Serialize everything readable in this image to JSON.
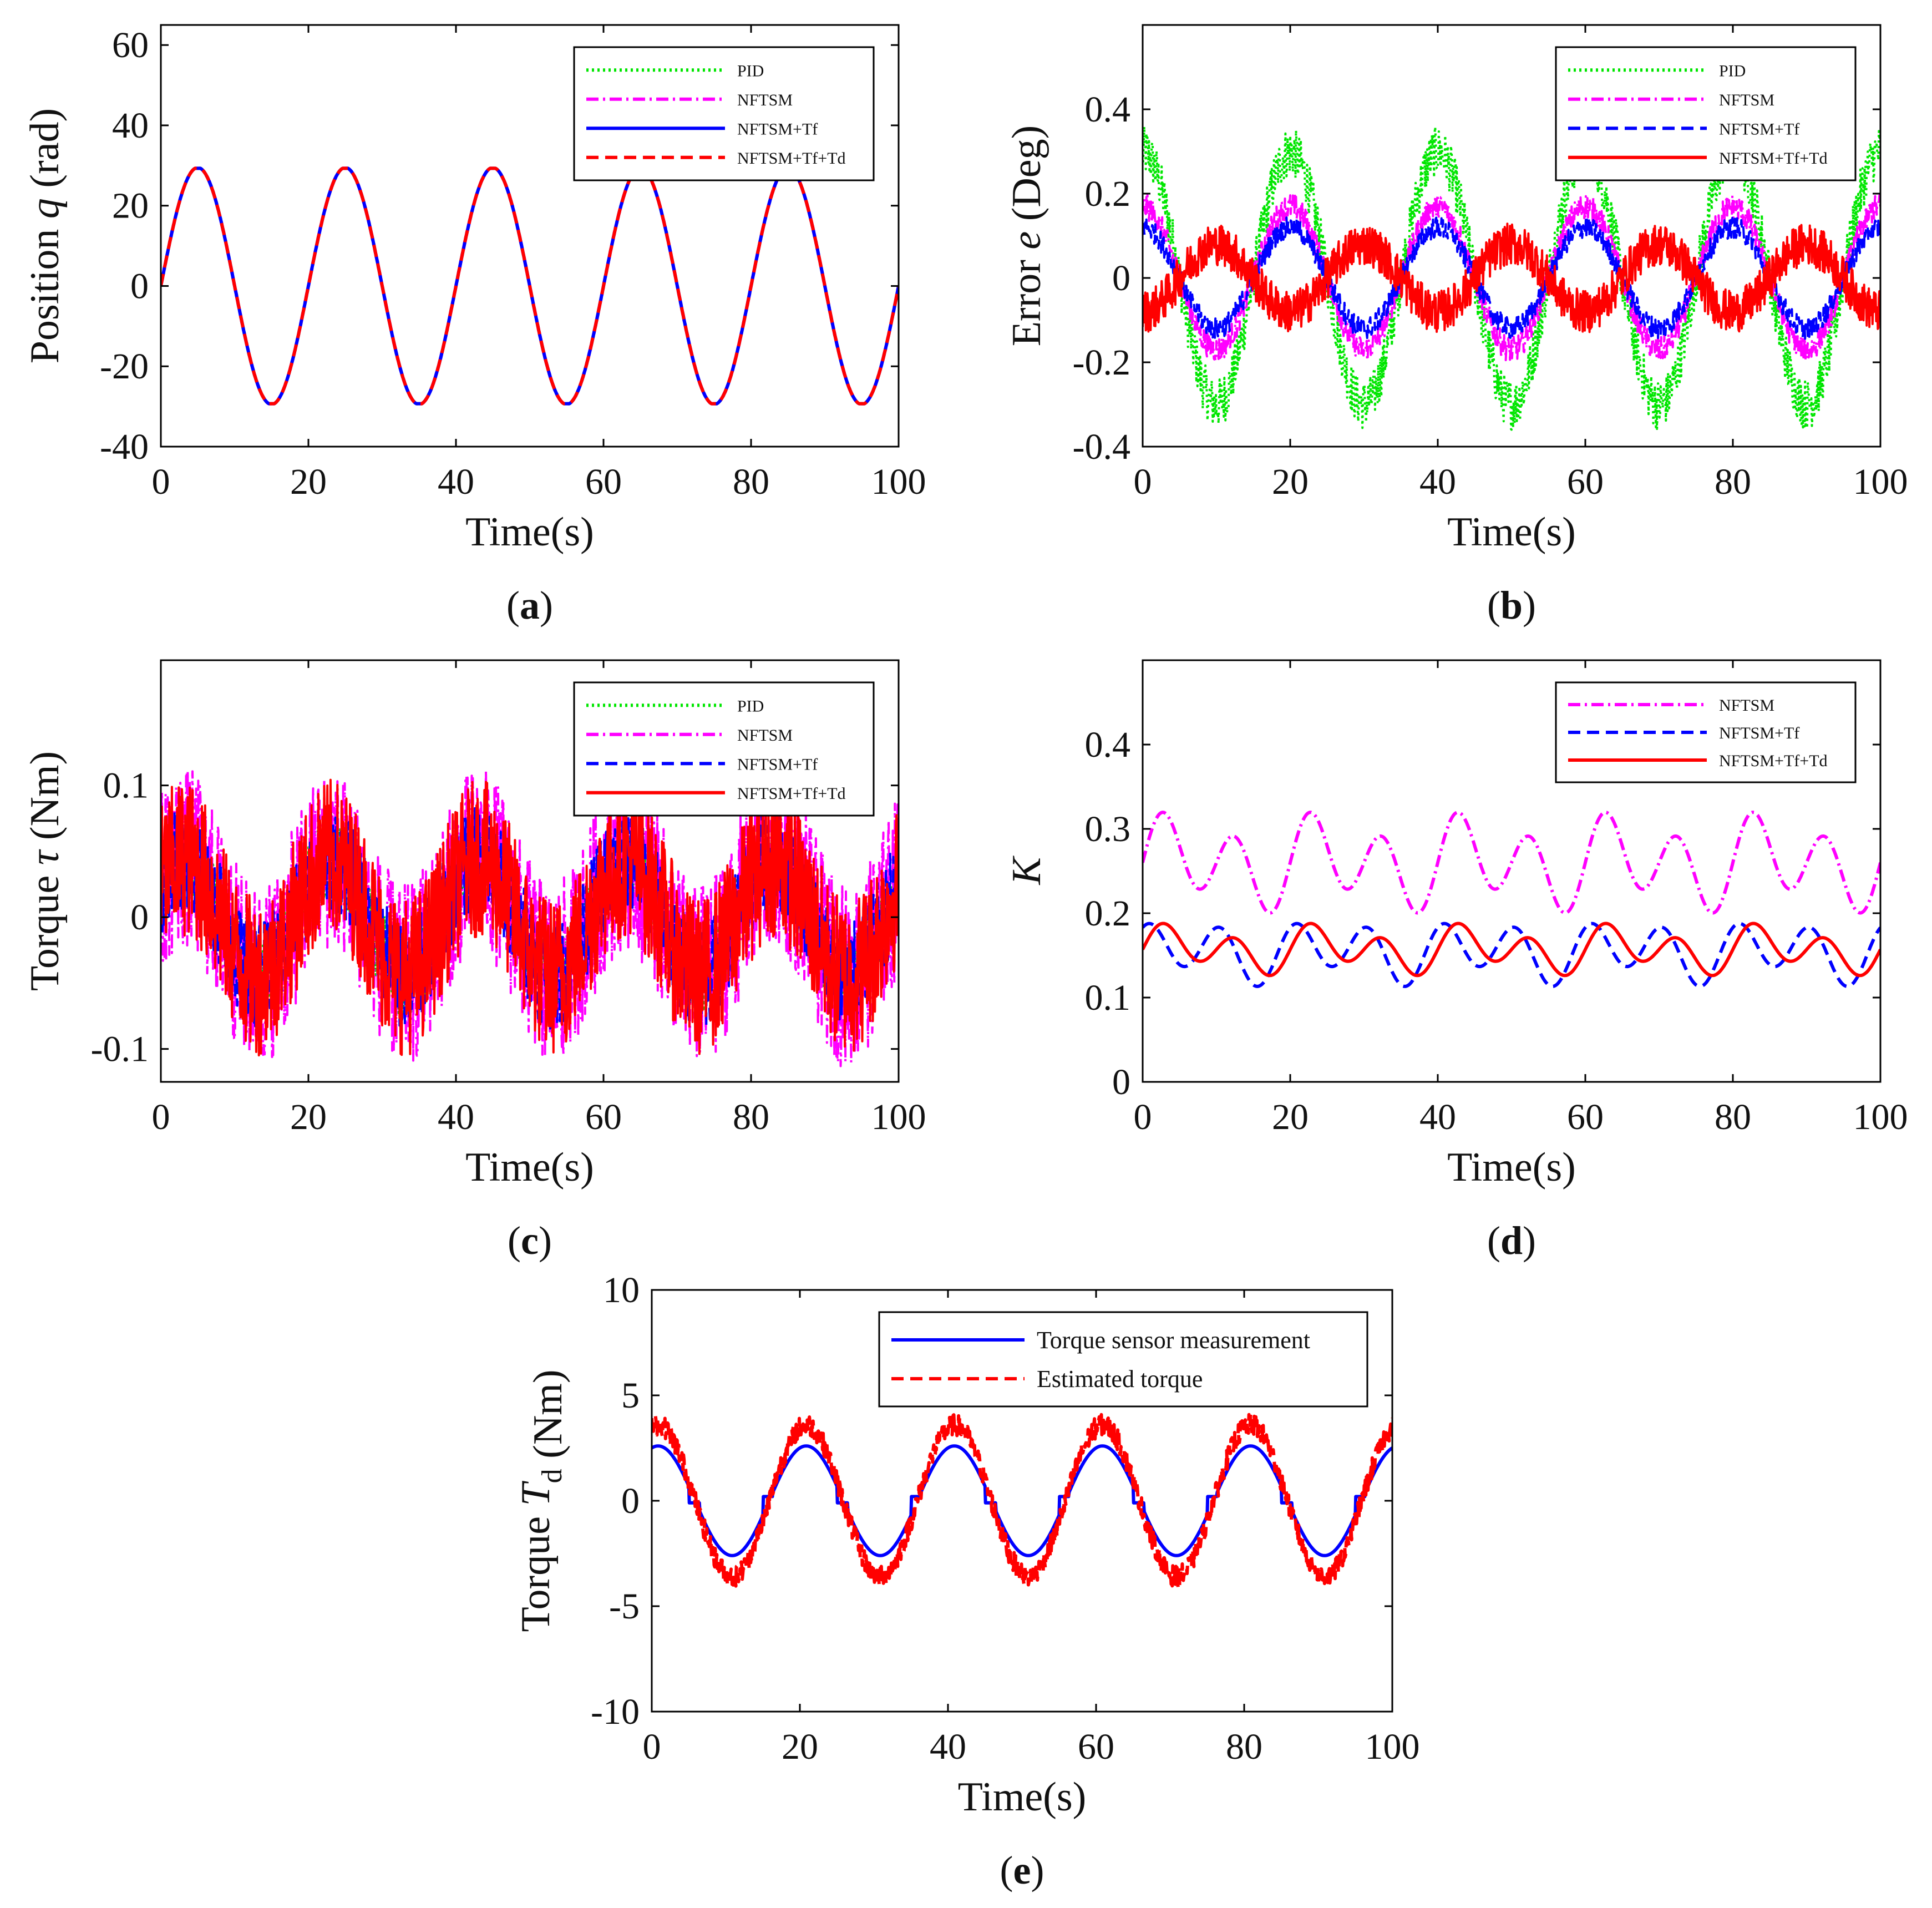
{
  "figure": {
    "panels": [
      "a",
      "b",
      "c",
      "d",
      "e"
    ]
  },
  "chart_data": [
    {
      "id": "a",
      "type": "line",
      "caption_letter": "a",
      "ylabel_pre": "Position ",
      "ylabel_sym": "q",
      "ylabel_post": " (rad)",
      "xlabel": "Time(s)",
      "xlim": [
        0,
        100
      ],
      "ylim": [
        -40,
        65
      ],
      "xticks": [
        0,
        20,
        40,
        60,
        80,
        100
      ],
      "yticks": [
        -40,
        -20,
        0,
        20,
        40,
        60
      ],
      "legend_position": "top-right",
      "series": [
        {
          "name": "PID",
          "color": "#00e600",
          "style": "dotted",
          "amplitude": 29.5,
          "period": 20,
          "clip": 29.3,
          "noise": 0
        },
        {
          "name": "NFTSM",
          "color": "#ff00ff",
          "style": "dashdot",
          "amplitude": 29.5,
          "period": 20,
          "clip": 29.3,
          "noise": 0
        },
        {
          "name": "NFTSM+Tf",
          "color": "#0000ff",
          "style": "solid",
          "amplitude": 29.5,
          "period": 20,
          "clip": 29.3,
          "noise": 0
        },
        {
          "name": "NFTSM+Tf+Td",
          "color": "#ff0000",
          "style": "dashed",
          "amplitude": 29.5,
          "period": 20,
          "clip": 29.3,
          "noise": 0
        }
      ]
    },
    {
      "id": "b",
      "type": "line",
      "caption_letter": "b",
      "ylabel_pre": "Error ",
      "ylabel_sym": "e",
      "ylabel_post": " (Deg)",
      "xlabel": "Time(s)",
      "xlim": [
        0,
        100
      ],
      "ylim": [
        -0.4,
        0.6
      ],
      "xticks": [
        0,
        20,
        40,
        60,
        80,
        100
      ],
      "yticks": [
        -0.4,
        -0.2,
        0,
        0.2,
        0.4
      ],
      "legend_position": "top-right",
      "series": [
        {
          "name": "PID",
          "color": "#00e600",
          "style": "dotted",
          "amplitude": 0.3,
          "period": 20,
          "phase": 1.57,
          "noise": 0.06
        },
        {
          "name": "NFTSM",
          "color": "#ff00ff",
          "style": "dashdot",
          "amplitude": 0.17,
          "period": 20,
          "phase": 1.57,
          "noise": 0.03
        },
        {
          "name": "NFTSM+Tf",
          "color": "#0000ff",
          "style": "dashed",
          "amplitude": 0.12,
          "period": 20,
          "phase": 1.57,
          "noise": 0.025
        },
        {
          "name": "NFTSM+Tf+Td",
          "color": "#ff0000",
          "style": "solid",
          "amplitude": 0.08,
          "period": 20,
          "phase": -1.57,
          "noise": 0.05
        }
      ]
    },
    {
      "id": "c",
      "type": "line",
      "caption_letter": "c",
      "ylabel_pre": "Torque ",
      "ylabel_sym": "τ",
      "ylabel_post": " (Nm)",
      "xlabel": "Time(s)",
      "xlim": [
        0,
        100
      ],
      "ylim": [
        -0.125,
        0.195
      ],
      "xticks": [
        0,
        20,
        40,
        60,
        80,
        100
      ],
      "yticks": [
        -0.1,
        0,
        0.1
      ],
      "legend_position": "top-right",
      "series": [
        {
          "name": "PID",
          "color": "#00e600",
          "style": "dotted",
          "amplitude": 0.045,
          "period": 20,
          "phase": 0.6,
          "noise": 0.03
        },
        {
          "name": "NFTSM",
          "color": "#ff00ff",
          "style": "dashdot",
          "amplitude": 0.045,
          "period": 20,
          "phase": 0.6,
          "noise": 0.07
        },
        {
          "name": "NFTSM+Tf",
          "color": "#0000ff",
          "style": "dashed",
          "amplitude": 0.045,
          "period": 20,
          "phase": 0.6,
          "noise": 0.04
        },
        {
          "name": "NFTSM+Tf+Td",
          "color": "#ff0000",
          "style": "solid",
          "amplitude": 0.045,
          "period": 20,
          "phase": 0.6,
          "noise": 0.06
        }
      ]
    },
    {
      "id": "d",
      "type": "line",
      "caption_letter": "d",
      "ylabel_pre": "",
      "ylabel_sym": "K",
      "ylabel_post": "",
      "xlabel": "Time(s)",
      "xlim": [
        0,
        100
      ],
      "ylim": [
        0,
        0.5
      ],
      "xticks": [
        0,
        20,
        40,
        60,
        80,
        100
      ],
      "yticks": [
        0,
        0.1,
        0.2,
        0.3,
        0.4
      ],
      "legend_position": "top-right",
      "series": [
        {
          "name": "NFTSM",
          "color": "#ff00ff",
          "style": "dashdot",
          "offset": 0.26,
          "amplitude": 0.045,
          "period": 10,
          "noise": 0
        },
        {
          "name": "NFTSM+Tf",
          "color": "#0000ff",
          "style": "dashed",
          "offset": 0.155,
          "amplitude": 0.03,
          "period": 10,
          "noise": 0
        },
        {
          "name": "NFTSM+Tf+Td",
          "color": "#ff0000",
          "style": "solid",
          "offset": 0.157,
          "amplitude": 0.022,
          "period": 10,
          "noise": 0
        }
      ]
    },
    {
      "id": "e",
      "type": "line",
      "caption_letter": "e",
      "ylabel_pre": "Torque ",
      "ylabel_sym": "T",
      "ylabel_sub": "d",
      "ylabel_post": " (Nm)",
      "xlabel": "Time(s)",
      "xlim": [
        0,
        100
      ],
      "ylim": [
        -10,
        10
      ],
      "xticks": [
        0,
        20,
        40,
        60,
        80,
        100
      ],
      "yticks": [
        -10,
        -5,
        0,
        5,
        10
      ],
      "legend_position": "top-right",
      "series": [
        {
          "name": "Torque sensor measurement",
          "color": "#0000ff",
          "style": "solid",
          "amplitude": 2.6,
          "period": 20,
          "phase": 1.3,
          "noise": 0
        },
        {
          "name": "Estimated torque",
          "color": "#ff0000",
          "style": "dashed",
          "amplitude": 3.6,
          "period": 20,
          "phase": 1.3,
          "noise": 0.5
        }
      ]
    }
  ]
}
